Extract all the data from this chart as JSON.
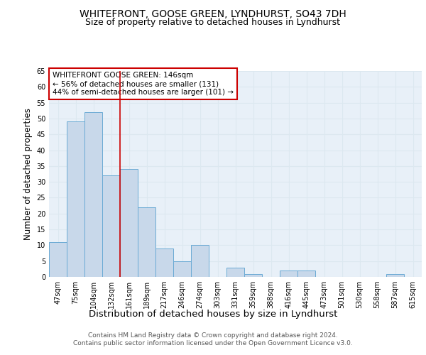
{
  "title1": "WHITEFRONT, GOOSE GREEN, LYNDHURST, SO43 7DH",
  "title2": "Size of property relative to detached houses in Lyndhurst",
  "xlabel": "Distribution of detached houses by size in Lyndhurst",
  "ylabel": "Number of detached properties",
  "categories": [
    "47sqm",
    "75sqm",
    "104sqm",
    "132sqm",
    "161sqm",
    "189sqm",
    "217sqm",
    "246sqm",
    "274sqm",
    "303sqm",
    "331sqm",
    "359sqm",
    "388sqm",
    "416sqm",
    "445sqm",
    "473sqm",
    "501sqm",
    "530sqm",
    "558sqm",
    "587sqm",
    "615sqm"
  ],
  "values": [
    11,
    49,
    52,
    32,
    34,
    22,
    9,
    5,
    10,
    0,
    3,
    1,
    0,
    2,
    2,
    0,
    0,
    0,
    0,
    1,
    0
  ],
  "bar_color": "#c8d8ea",
  "bar_edge_color": "#6aaad4",
  "grid_color": "#dce8f0",
  "background_color": "#e8f0f8",
  "vline_x_index": 3.5,
  "vline_color": "#cc0000",
  "annotation_text": "WHITEFRONT GOOSE GREEN: 146sqm\n← 56% of detached houses are smaller (131)\n44% of semi-detached houses are larger (101) →",
  "annotation_box_color": "white",
  "annotation_box_edge": "#cc0000",
  "ylim": [
    0,
    65
  ],
  "yticks": [
    0,
    5,
    10,
    15,
    20,
    25,
    30,
    35,
    40,
    45,
    50,
    55,
    60,
    65
  ],
  "footer_text": "Contains HM Land Registry data © Crown copyright and database right 2024.\nContains public sector information licensed under the Open Government Licence v3.0.",
  "title1_fontsize": 10,
  "title2_fontsize": 9,
  "xlabel_fontsize": 9.5,
  "ylabel_fontsize": 8.5,
  "tick_fontsize": 7,
  "footer_fontsize": 6.5,
  "annotation_fontsize": 7.5
}
